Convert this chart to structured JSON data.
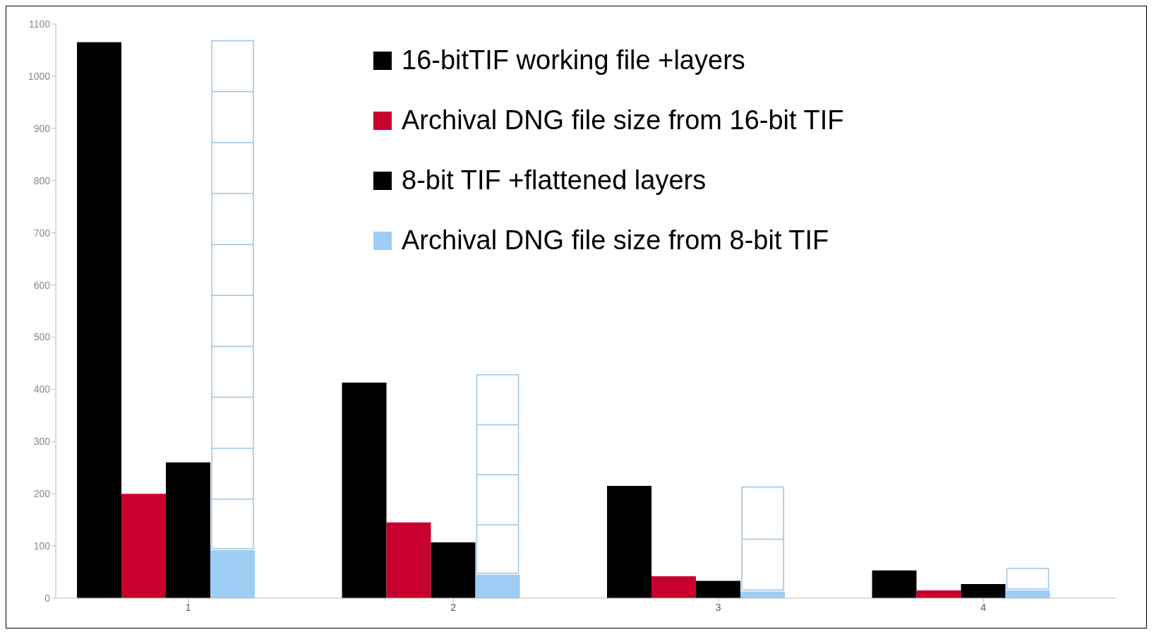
{
  "chart_data": {
    "type": "bar",
    "categories": [
      "1",
      "2",
      "3",
      "4"
    ],
    "series": [
      {
        "name": "16-bitTIF working file +layers",
        "color": "#000000",
        "values": [
          1065,
          413,
          215,
          53
        ]
      },
      {
        "name": "Archival DNG file size from 16-bit TIF",
        "color": "#c8002d",
        "values": [
          200,
          145,
          42,
          15
        ]
      },
      {
        "name": "8-bit TIF +flattened layers",
        "color": "#000000",
        "values": [
          260,
          107,
          33,
          27
        ]
      },
      {
        "name": "Archival DNG file size from 8-bit TIF",
        "color": "#9dcdf5",
        "values": [
          92,
          45,
          13,
          15
        ]
      },
      {
        "color": "#9dc3e6",
        "base": [
          92,
          45,
          13,
          15
        ],
        "values": [
          976,
          383,
          200,
          42
        ]
      }
    ],
    "ylim": [
      0,
      1100
    ],
    "yticks": [
      0,
      100,
      200,
      300,
      400,
      500,
      600,
      700,
      800,
      900,
      1000,
      1100
    ],
    "grid": false,
    "legend": "top"
  }
}
